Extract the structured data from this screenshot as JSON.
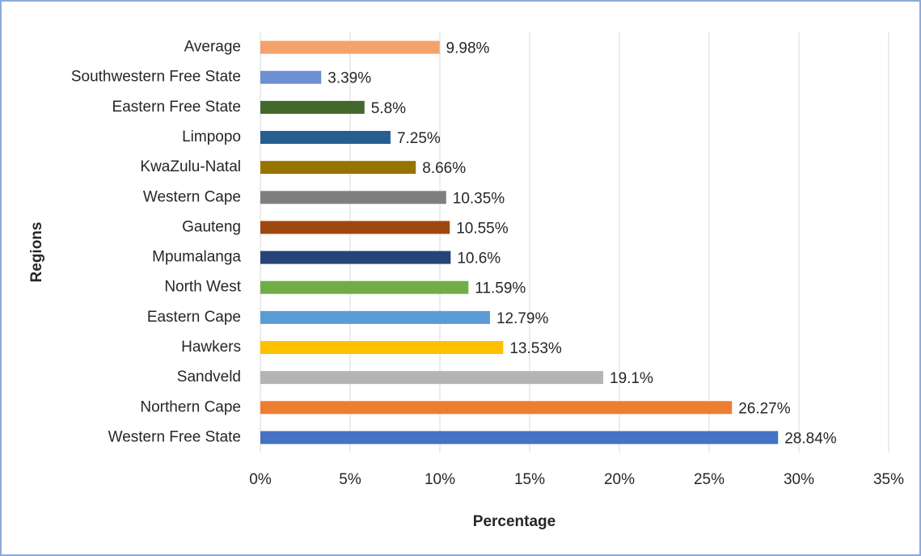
{
  "chart_data": {
    "type": "barh",
    "x_label": "Percentage",
    "y_label": "Regions",
    "categories": [
      "Average",
      "Southwestern Free State",
      "Eastern Free State",
      "Limpopo",
      "KwaZulu-Natal",
      "Western Cape",
      "Gauteng",
      "Mpumalanga",
      "North West",
      "Eastern Cape",
      "Hawkers",
      "Sandveld",
      "Northern Cape",
      "Western Free State"
    ],
    "values": [
      9.98,
      3.39,
      5.8,
      7.25,
      8.66,
      10.35,
      10.55,
      10.6,
      11.59,
      12.79,
      13.53,
      19.1,
      26.27,
      28.84
    ],
    "value_labels": [
      "9.98%",
      "3.39%",
      "5.8%",
      "7.25%",
      "8.66%",
      "10.35%",
      "10.55%",
      "10.6%",
      "11.59%",
      "12.79%",
      "13.53%",
      "19.1%",
      "26.27%",
      "28.84%"
    ],
    "colors": [
      "#f4a26b",
      "#6d8fd4",
      "#43682b",
      "#255e91",
      "#997300",
      "#7f7f7f",
      "#9e480e",
      "#264478",
      "#70ad47",
      "#5b9bd5",
      "#ffc000",
      "#b4b4b4",
      "#ed7d31",
      "#4472c4"
    ],
    "xlim": [
      0,
      35
    ],
    "xticks": [
      {
        "value": 0,
        "label": "0%"
      },
      {
        "value": 5,
        "label": "5%"
      },
      {
        "value": 10,
        "label": "10%"
      },
      {
        "value": 15,
        "label": "15%"
      },
      {
        "value": 20,
        "label": "20%"
      },
      {
        "value": 25,
        "label": "25%"
      },
      {
        "value": 30,
        "label": "30%"
      },
      {
        "value": 35,
        "label": "35%"
      }
    ],
    "grid": true
  }
}
